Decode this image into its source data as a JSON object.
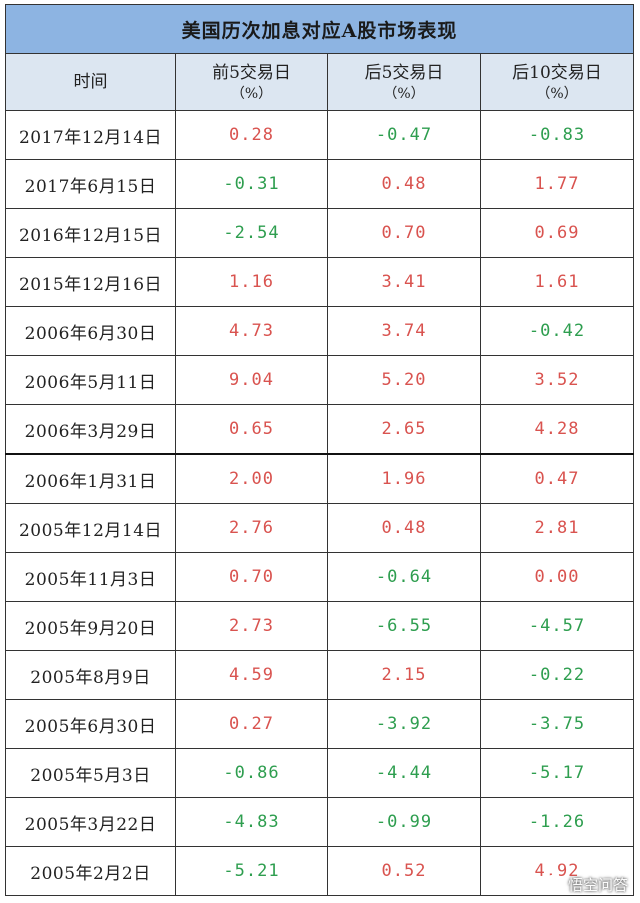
{
  "table": {
    "title": "美国历次加息对应A股市场表现",
    "headers": [
      {
        "main": "时间",
        "sub": ""
      },
      {
        "main": "前5交易日",
        "sub": "（%）"
      },
      {
        "main": "后5交易日",
        "sub": "（%）"
      },
      {
        "main": "后10交易日",
        "sub": "（%）"
      }
    ],
    "rows": [
      {
        "date": "2017年12月14日",
        "pre5": "0.28",
        "post5": "-0.47",
        "post10": "-0.83"
      },
      {
        "date": "2017年6月15日",
        "pre5": "-0.31",
        "post5": "0.48",
        "post10": "1.77"
      },
      {
        "date": "2016年12月15日",
        "pre5": "-2.54",
        "post5": "0.70",
        "post10": "0.69"
      },
      {
        "date": "2015年12月16日",
        "pre5": "1.16",
        "post5": "3.41",
        "post10": "1.61"
      },
      {
        "date": "2006年6月30日",
        "pre5": "4.73",
        "post5": "3.74",
        "post10": "-0.42"
      },
      {
        "date": "2006年5月11日",
        "pre5": "9.04",
        "post5": "5.20",
        "post10": "3.52"
      },
      {
        "date": "2006年3月29日",
        "pre5": "0.65",
        "post5": "2.65",
        "post10": "4.28"
      },
      {
        "date": "2006年1月31日",
        "pre5": "2.00",
        "post5": "1.96",
        "post10": "0.47"
      },
      {
        "date": "2005年12月14日",
        "pre5": "2.76",
        "post5": "0.48",
        "post10": "2.81"
      },
      {
        "date": "2005年11月3日",
        "pre5": "0.70",
        "post5": "-0.64",
        "post10": "0.00"
      },
      {
        "date": "2005年9月20日",
        "pre5": "2.73",
        "post5": "-6.55",
        "post10": "-4.57"
      },
      {
        "date": "2005年8月9日",
        "pre5": "4.59",
        "post5": "2.15",
        "post10": "-0.22"
      },
      {
        "date": "2005年6月30日",
        "pre5": "0.27",
        "post5": "-3.92",
        "post10": "-3.75"
      },
      {
        "date": "2005年5月3日",
        "pre5": "-0.86",
        "post5": "-4.44",
        "post10": "-5.17"
      },
      {
        "date": "2005年3月22日",
        "pre5": "-4.83",
        "post5": "-0.99",
        "post10": "-1.26"
      },
      {
        "date": "2005年2月2日",
        "pre5": "-5.21",
        "post5": "0.52",
        "post10": "4.92"
      }
    ]
  },
  "colors": {
    "positive": "#d9534f",
    "negative": "#2e9e4f",
    "title_bg": "#8db4e2",
    "header_bg": "#dce6f1"
  },
  "watermark": {
    "icon": "chat-bubble-icon",
    "text": "悟空问答"
  }
}
